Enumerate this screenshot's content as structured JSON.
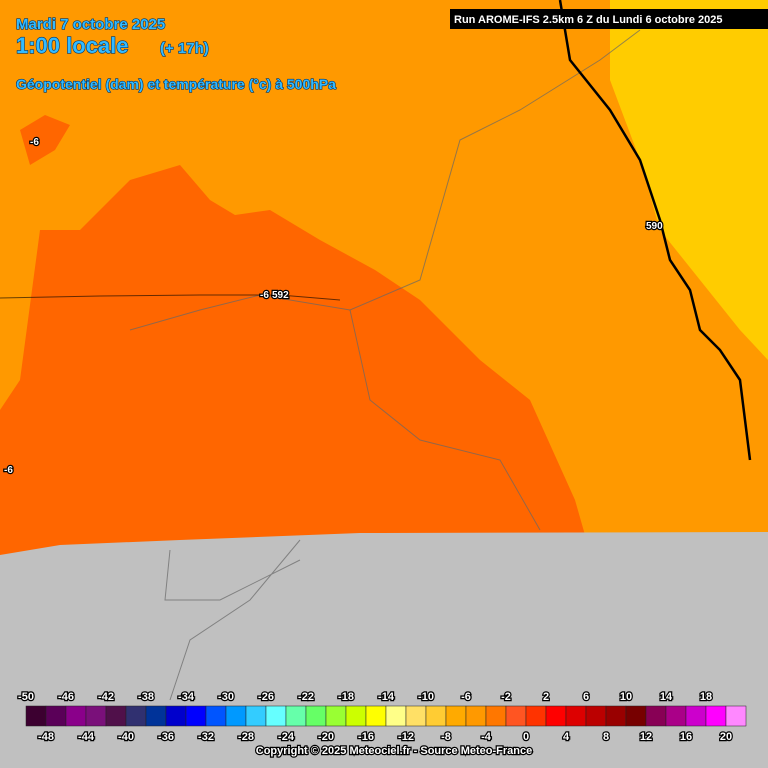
{
  "header": {
    "date": "Mardi 7 octobre 2025",
    "time": "1:00 locale",
    "lead": "(+ 17h)",
    "field": "Géopotentiel (dam) et température (°c) à 500hPa",
    "run": "Run AROME-IFS 2.5km 6 Z du Lundi 6 octobre 2025"
  },
  "map_labels": [
    "-6",
    "-6",
    "-6",
    "592",
    "590"
  ],
  "colorbar": {
    "ticks": [
      -50,
      -48,
      -46,
      -44,
      -42,
      -40,
      -38,
      -36,
      -34,
      -32,
      -30,
      -28,
      -26,
      -24,
      -22,
      -20,
      -18,
      -16,
      -14,
      -12,
      -10,
      -8,
      -6,
      -4,
      -2,
      0,
      2,
      4,
      6,
      8,
      10,
      12,
      14,
      16,
      18,
      20
    ],
    "colors": [
      "#3c0030",
      "#5a0058",
      "#8a008a",
      "#7a107a",
      "#50104a",
      "#303070",
      "#003399",
      "#0000cc",
      "#0000ff",
      "#0055ff",
      "#0099ff",
      "#33ccff",
      "#66ffff",
      "#66ffaa",
      "#66ff66",
      "#99ff33",
      "#ccff00",
      "#ffff00",
      "#ffff88",
      "#ffe066",
      "#ffcc33",
      "#ffaa00",
      "#ff9900",
      "#ff7700",
      "#ff5522",
      "#ff3300",
      "#ff0000",
      "#dd0000",
      "#bb0000",
      "#990000",
      "#770000",
      "#880055",
      "#aa0088",
      "#cc00cc",
      "#ff00ff",
      "#ff88ff"
    ]
  },
  "copyright": "Copyright © 2025 Meteociel.fr - Source Meteo-France"
}
